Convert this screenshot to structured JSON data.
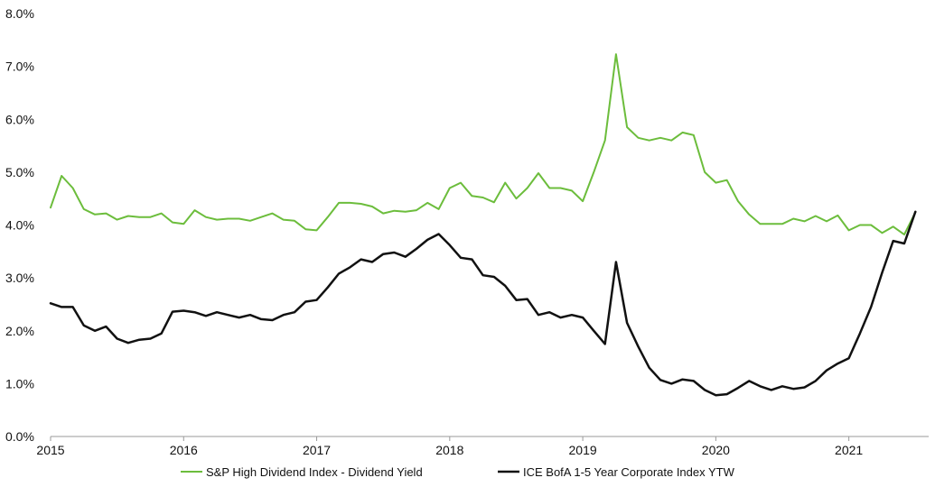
{
  "chart_data": {
    "type": "line",
    "title": "",
    "xlabel": "",
    "ylabel": "",
    "xlim": [
      2015,
      2021.6
    ],
    "ylim": [
      0,
      8
    ],
    "grid": false,
    "legend_position": "bottom",
    "x_ticks": [
      {
        "value": 2015,
        "label": "2015"
      },
      {
        "value": 2016,
        "label": "2016"
      },
      {
        "value": 2017,
        "label": "2017"
      },
      {
        "value": 2018,
        "label": "2018"
      },
      {
        "value": 2019,
        "label": "2019"
      },
      {
        "value": 2020,
        "label": "2020"
      },
      {
        "value": 2021,
        "label": "2021"
      }
    ],
    "y_ticks": [
      {
        "value": 0,
        "label": "0.0%"
      },
      {
        "value": 1,
        "label": "1.0%"
      },
      {
        "value": 2,
        "label": "2.0%"
      },
      {
        "value": 3,
        "label": "3.0%"
      },
      {
        "value": 4,
        "label": "4.0%"
      },
      {
        "value": 5,
        "label": "5.0%"
      },
      {
        "value": 6,
        "label": "6.0%"
      },
      {
        "value": 7,
        "label": "7.0%"
      },
      {
        "value": 8,
        "label": "8.0%"
      }
    ],
    "series": [
      {
        "name": "S&P High Dividend Index - Dividend Yield",
        "color": "#6cbd3c",
        "x": [
          2015.0,
          2015.083,
          2015.167,
          2015.25,
          2015.333,
          2015.417,
          2015.5,
          2015.583,
          2015.667,
          2015.75,
          2015.833,
          2015.917,
          2016.0,
          2016.083,
          2016.167,
          2016.25,
          2016.333,
          2016.417,
          2016.5,
          2016.583,
          2016.667,
          2016.75,
          2016.833,
          2016.917,
          2017.0,
          2017.083,
          2017.167,
          2017.25,
          2017.333,
          2017.417,
          2017.5,
          2017.583,
          2017.667,
          2017.75,
          2017.833,
          2017.917,
          2018.0,
          2018.083,
          2018.167,
          2018.25,
          2018.333,
          2018.417,
          2018.5,
          2018.583,
          2018.667,
          2018.75,
          2018.833,
          2018.917,
          2019.0,
          2019.083,
          2019.167,
          2019.25,
          2019.333,
          2019.417,
          2019.5,
          2019.583,
          2019.667,
          2019.75,
          2019.833,
          2019.917,
          2020.0,
          2020.083,
          2020.167,
          2020.25,
          2020.333,
          2020.417,
          2020.5,
          2020.583,
          2020.667,
          2020.75,
          2020.833,
          2020.917,
          2021.0,
          2021.083,
          2021.167,
          2021.25,
          2021.333,
          2021.417,
          2021.5
        ],
        "y": [
          4.33,
          4.93,
          4.7,
          4.3,
          4.2,
          4.22,
          4.1,
          4.17,
          4.15,
          4.15,
          4.22,
          4.05,
          4.02,
          4.28,
          4.15,
          4.1,
          4.12,
          4.12,
          4.08,
          4.15,
          4.22,
          4.1,
          4.08,
          3.92,
          3.9,
          4.15,
          4.42,
          4.42,
          4.4,
          4.35,
          4.22,
          4.27,
          4.25,
          4.28,
          4.42,
          4.3,
          4.7,
          4.8,
          4.55,
          4.52,
          4.43,
          4.8,
          4.5,
          4.7,
          4.98,
          4.7,
          4.7,
          4.65,
          4.45,
          5.0,
          5.6,
          7.23,
          5.85,
          5.65,
          5.6,
          5.65,
          5.6,
          5.75,
          5.7,
          5.0,
          4.8,
          4.85,
          4.45,
          4.2,
          4.02,
          4.02,
          4.02,
          4.12,
          4.07,
          4.17,
          4.07,
          4.18,
          3.9,
          4.0,
          4.0,
          3.85,
          3.97,
          3.82,
          4.24
        ]
      },
      {
        "name": "ICE BofA 1-5 Year Corporate Index YTW",
        "color": "#111111",
        "x": [
          2015.0,
          2015.083,
          2015.167,
          2015.25,
          2015.333,
          2015.417,
          2015.5,
          2015.583,
          2015.667,
          2015.75,
          2015.833,
          2015.917,
          2016.0,
          2016.083,
          2016.167,
          2016.25,
          2016.333,
          2016.417,
          2016.5,
          2016.583,
          2016.667,
          2016.75,
          2016.833,
          2016.917,
          2017.0,
          2017.083,
          2017.167,
          2017.25,
          2017.333,
          2017.417,
          2017.5,
          2017.583,
          2017.667,
          2017.75,
          2017.833,
          2017.917,
          2018.0,
          2018.083,
          2018.167,
          2018.25,
          2018.333,
          2018.417,
          2018.5,
          2018.583,
          2018.667,
          2018.75,
          2018.833,
          2018.917,
          2019.0,
          2019.083,
          2019.167,
          2019.25,
          2019.333,
          2019.417,
          2019.5,
          2019.583,
          2019.667,
          2019.75,
          2019.833,
          2019.917,
          2020.0,
          2020.083,
          2020.167,
          2020.25,
          2020.333,
          2020.417,
          2020.5,
          2020.583,
          2020.667,
          2020.75,
          2020.833,
          2020.917,
          2021.0,
          2021.083,
          2021.167,
          2021.25,
          2021.333,
          2021.417,
          2021.5
        ],
        "y": [
          2.52,
          2.45,
          2.45,
          2.1,
          2.0,
          2.08,
          1.85,
          1.77,
          1.83,
          1.85,
          1.95,
          2.36,
          2.38,
          2.35,
          2.28,
          2.35,
          2.3,
          2.25,
          2.3,
          2.22,
          2.2,
          2.3,
          2.35,
          2.55,
          2.58,
          2.82,
          3.08,
          3.2,
          3.35,
          3.3,
          3.45,
          3.48,
          3.4,
          3.55,
          3.72,
          3.83,
          3.62,
          3.38,
          3.35,
          3.05,
          3.02,
          2.85,
          2.58,
          2.6,
          2.3,
          2.35,
          2.25,
          2.3,
          2.25,
          2.0,
          1.75,
          3.3,
          2.15,
          1.7,
          1.3,
          1.07,
          1.0,
          1.08,
          1.05,
          0.88,
          0.78,
          0.8,
          0.92,
          1.05,
          0.95,
          0.88,
          0.95,
          0.9,
          0.93,
          1.05,
          1.25,
          1.38,
          1.48,
          1.95,
          2.45,
          3.1,
          3.7,
          3.65,
          4.25
        ]
      }
    ]
  }
}
